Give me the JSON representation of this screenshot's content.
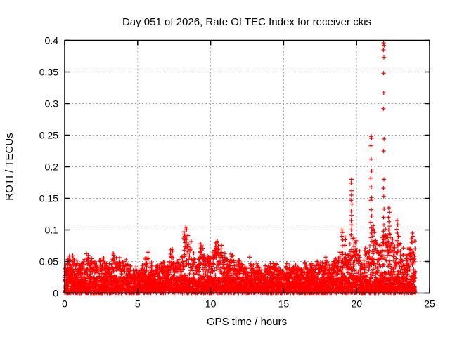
{
  "chart_data": {
    "type": "scatter",
    "title": "Day 051 of 2026, Rate Of TEC Index for receiver ckis",
    "xlabel": "GPS time / hours",
    "ylabel": "ROTI / TECUs",
    "xlim": [
      0,
      25
    ],
    "ylim": [
      0,
      0.4
    ],
    "xticks": [
      "0",
      "5",
      "10",
      "15",
      "20",
      "25"
    ],
    "yticks": [
      "0",
      "0.05",
      "0.1",
      "0.15",
      "0.2",
      "0.25",
      "0.3",
      "0.35",
      "0.4"
    ],
    "grid": true,
    "legend_position": "none",
    "marker": "plus",
    "marker_color": "#ff0000",
    "grid_color": "#a0a0a0",
    "border_color": "#000000",
    "series_name": "ROTI",
    "data_time_range": [
      0,
      24
    ],
    "dense_band": {
      "bin_hours": 0.25,
      "solid_fill_to": 0.025,
      "max_value_per_bin": [
        0.048,
        0.05,
        0.055,
        0.046,
        0.044,
        0.048,
        0.052,
        0.046,
        0.042,
        0.046,
        0.05,
        0.044,
        0.045,
        0.057,
        0.048,
        0.05,
        0.045,
        0.04,
        0.036,
        0.038,
        0.036,
        0.042,
        0.055,
        0.04,
        0.036,
        0.038,
        0.04,
        0.042,
        0.045,
        0.058,
        0.05,
        0.048,
        0.06,
        0.095,
        0.07,
        0.055,
        0.05,
        0.075,
        0.06,
        0.05,
        0.055,
        0.07,
        0.065,
        0.055,
        0.05,
        0.058,
        0.05,
        0.044,
        0.04,
        0.042,
        0.04,
        0.038,
        0.04,
        0.036,
        0.038,
        0.036,
        0.04,
        0.046,
        0.038,
        0.036,
        0.04,
        0.042,
        0.045,
        0.04,
        0.036,
        0.04,
        0.044,
        0.04,
        0.038,
        0.042,
        0.045,
        0.048,
        0.04,
        0.042,
        0.048,
        0.055,
        0.075,
        0.055,
        0.08,
        0.075,
        0.06,
        0.055,
        0.06,
        0.07,
        0.09,
        0.07,
        0.075,
        0.09,
        0.08,
        0.085,
        0.065,
        0.08,
        0.06,
        0.055,
        0.06,
        0.07
      ]
    },
    "outliers": [
      [
        8.18,
        0.097
      ],
      [
        8.2,
        0.093
      ],
      [
        8.22,
        0.09
      ],
      [
        8.17,
        0.087
      ],
      [
        8.21,
        0.084
      ],
      [
        8.24,
        0.08
      ],
      [
        9.4,
        0.075
      ],
      [
        9.45,
        0.071
      ],
      [
        10.35,
        0.071
      ],
      [
        10.4,
        0.068
      ],
      [
        12.67,
        0.057
      ],
      [
        19.0,
        0.1
      ],
      [
        19.02,
        0.096
      ],
      [
        18.98,
        0.09
      ],
      [
        19.05,
        0.084
      ],
      [
        19.65,
        0.18
      ],
      [
        19.63,
        0.174
      ],
      [
        19.67,
        0.162
      ],
      [
        19.65,
        0.155
      ],
      [
        19.62,
        0.147
      ],
      [
        19.68,
        0.141
      ],
      [
        19.64,
        0.13
      ],
      [
        19.66,
        0.123
      ],
      [
        19.63,
        0.115
      ],
      [
        19.67,
        0.108
      ],
      [
        19.65,
        0.1
      ],
      [
        19.62,
        0.092
      ],
      [
        19.68,
        0.086
      ],
      [
        21.0,
        0.248
      ],
      [
        21.02,
        0.245
      ],
      [
        20.98,
        0.233
      ],
      [
        21.0,
        0.212
      ],
      [
        21.03,
        0.193
      ],
      [
        20.97,
        0.182
      ],
      [
        21.0,
        0.168
      ],
      [
        21.02,
        0.151
      ],
      [
        20.98,
        0.147
      ],
      [
        21.0,
        0.132
      ],
      [
        21.03,
        0.122
      ],
      [
        20.97,
        0.112
      ],
      [
        21.0,
        0.103
      ],
      [
        21.02,
        0.095
      ],
      [
        20.98,
        0.088
      ],
      [
        21.05,
        0.082
      ],
      [
        21.85,
        0.396
      ],
      [
        21.88,
        0.392
      ],
      [
        21.84,
        0.385
      ],
      [
        21.87,
        0.373
      ],
      [
        21.85,
        0.348
      ],
      [
        21.86,
        0.317
      ],
      [
        21.84,
        0.292
      ],
      [
        21.88,
        0.244
      ],
      [
        21.85,
        0.225
      ],
      [
        21.87,
        0.18
      ],
      [
        21.84,
        0.166
      ],
      [
        21.86,
        0.153
      ],
      [
        21.88,
        0.133
      ],
      [
        21.85,
        0.12
      ],
      [
        21.87,
        0.108
      ],
      [
        21.84,
        0.098
      ],
      [
        21.86,
        0.09
      ],
      [
        22.2,
        0.135
      ],
      [
        22.25,
        0.128
      ],
      [
        22.18,
        0.12
      ],
      [
        22.22,
        0.113
      ],
      [
        22.27,
        0.106
      ],
      [
        22.2,
        0.1
      ],
      [
        22.24,
        0.094
      ],
      [
        22.3,
        0.088
      ],
      [
        22.17,
        0.082
      ],
      [
        22.78,
        0.115
      ],
      [
        22.82,
        0.108
      ],
      [
        22.75,
        0.101
      ],
      [
        22.8,
        0.095
      ],
      [
        22.85,
        0.089
      ],
      [
        22.77,
        0.083
      ],
      [
        23.82,
        0.095
      ],
      [
        23.85,
        0.09
      ],
      [
        23.78,
        0.086
      ],
      [
        23.8,
        0.08
      ]
    ]
  }
}
